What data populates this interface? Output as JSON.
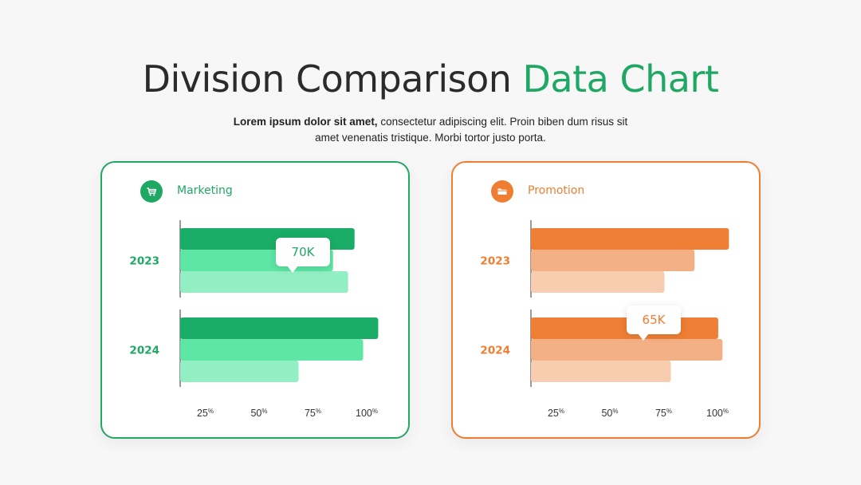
{
  "header": {
    "title_main": "Division Comparison",
    "title_accent": "Data Chart",
    "subtitle_bold": "Lorem ipsum dolor sit amet,",
    "subtitle_rest": " consectetur adipiscing elit. Proin biben dum risus sit amet venenatis tristique. Morbi tortor justo porta."
  },
  "colors": {
    "green": "#22a865",
    "orange": "#ef7d32"
  },
  "chart_data": [
    {
      "type": "bar",
      "orientation": "horizontal",
      "name": "Marketing",
      "icon": "shopping-cart-icon",
      "categories": [
        "2023",
        "2024"
      ],
      "x_ticks": [
        {
          "value": 25,
          "num": "25",
          "unit": "%"
        },
        {
          "value": 50,
          "num": "50",
          "unit": "%"
        },
        {
          "value": 75,
          "num": "75",
          "unit": "%"
        },
        {
          "value": 100,
          "num": "100",
          "unit": "%"
        }
      ],
      "xlim": [
        0,
        105
      ],
      "series": [
        {
          "values": [
            81,
            92
          ],
          "color": "#1aad67"
        },
        {
          "values": [
            71,
            85
          ],
          "color": "#5de6a5"
        },
        {
          "values": [
            78,
            55
          ],
          "color": "#92eec3"
        }
      ],
      "annotation": {
        "text": "70K",
        "category": "2023",
        "series": 1
      },
      "label_color": "#1fa864"
    },
    {
      "type": "bar",
      "orientation": "horizontal",
      "name": "Promotion",
      "icon": "folder-icon",
      "categories": [
        "2023",
        "2024"
      ],
      "x_ticks": [
        {
          "value": 25,
          "num": "25",
          "unit": "%"
        },
        {
          "value": 50,
          "num": "50",
          "unit": "%"
        },
        {
          "value": 75,
          "num": "75",
          "unit": "%"
        },
        {
          "value": 100,
          "num": "100",
          "unit": "%"
        }
      ],
      "xlim": [
        0,
        105
      ],
      "series": [
        {
          "values": [
            92,
            87
          ],
          "color": "#ef7f34"
        },
        {
          "values": [
            76,
            89
          ],
          "color": "#f4b085"
        },
        {
          "values": [
            62,
            65
          ],
          "color": "#f8ccae"
        }
      ],
      "annotation": {
        "text": "65K",
        "category": "2024",
        "series": 0
      },
      "label_color": "#ef7d32"
    }
  ]
}
